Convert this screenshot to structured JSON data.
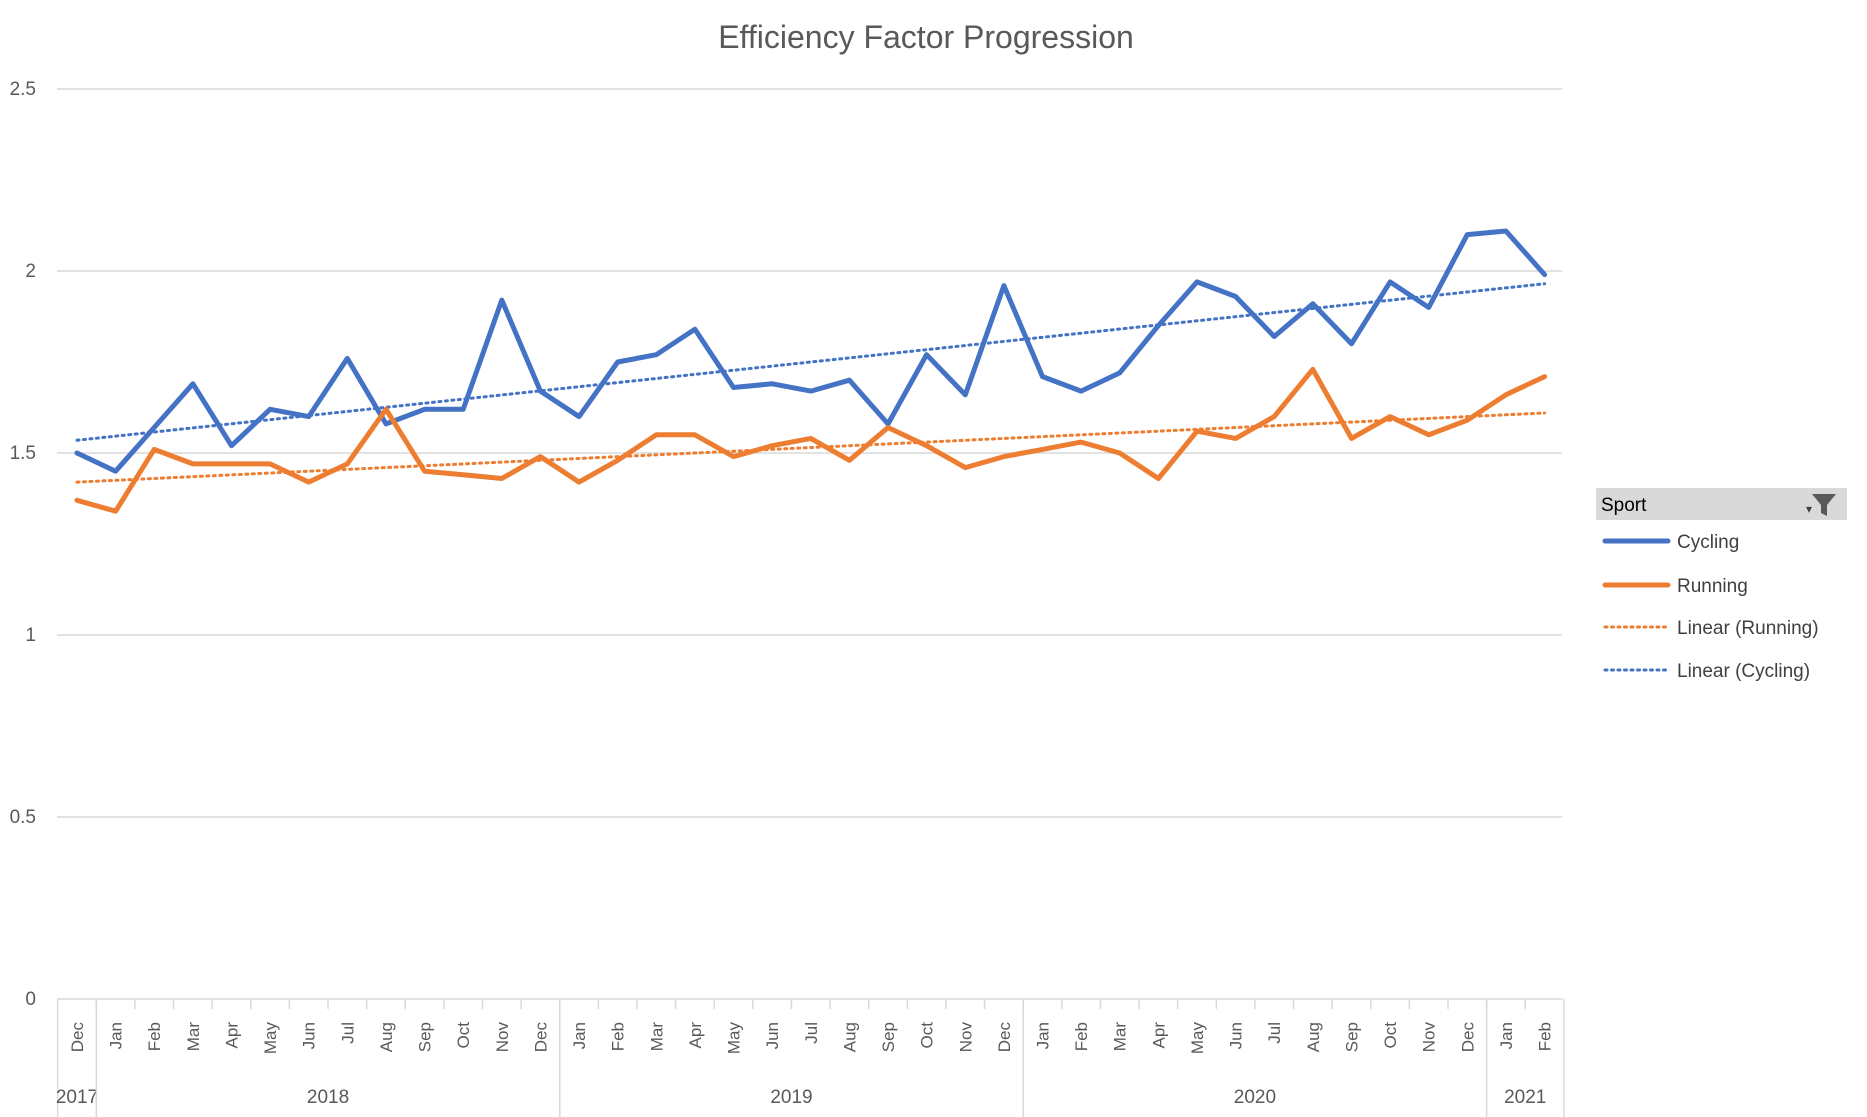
{
  "chart_data": {
    "type": "line",
    "title": "Efficiency Factor Progression",
    "ylim": [
      0,
      2.5
    ],
    "yticks": [
      "0",
      "0.5",
      "1",
      "1.5",
      "2",
      "2.5"
    ],
    "grid": true,
    "legend_position": "right",
    "legend_title": "Sport",
    "categories": [
      "Dec",
      "Jan",
      "Feb",
      "Mar",
      "Apr",
      "May",
      "Jun",
      "Jul",
      "Aug",
      "Sep",
      "Oct",
      "Nov",
      "Dec",
      "Jan",
      "Feb",
      "Mar",
      "Apr",
      "May",
      "Jun",
      "Jul",
      "Aug",
      "Sep",
      "Oct",
      "Nov",
      "Dec",
      "Jan",
      "Feb",
      "Mar",
      "Apr",
      "May",
      "Jun",
      "Jul",
      "Aug",
      "Sep",
      "Oct",
      "Nov",
      "Dec",
      "Jan",
      "Feb"
    ],
    "year_groups": [
      {
        "label": "2017",
        "start": 0,
        "end": 0
      },
      {
        "label": "2018",
        "start": 1,
        "end": 12
      },
      {
        "label": "2019",
        "start": 13,
        "end": 24
      },
      {
        "label": "2020",
        "start": 25,
        "end": 36
      },
      {
        "label": "2021",
        "start": 37,
        "end": 38
      }
    ],
    "series": [
      {
        "name": "Cycling",
        "color": "#4472C4",
        "style": "solid",
        "values": [
          1.5,
          1.45,
          1.57,
          1.69,
          1.52,
          1.62,
          1.6,
          1.76,
          1.58,
          1.62,
          1.62,
          1.92,
          1.67,
          1.6,
          1.75,
          1.77,
          1.84,
          1.68,
          1.69,
          1.67,
          1.7,
          1.58,
          1.77,
          1.66,
          1.96,
          1.71,
          1.67,
          1.72,
          1.85,
          1.97,
          1.93,
          1.82,
          1.91,
          1.8,
          1.97,
          1.9,
          2.1,
          2.11,
          1.99
        ]
      },
      {
        "name": "Running",
        "color": "#ED7D31",
        "style": "solid",
        "values": [
          1.37,
          1.34,
          1.51,
          1.47,
          1.47,
          1.47,
          1.42,
          1.47,
          1.62,
          1.45,
          1.44,
          1.43,
          1.49,
          1.42,
          1.48,
          1.55,
          1.55,
          1.49,
          1.52,
          1.54,
          1.48,
          1.57,
          1.52,
          1.46,
          1.49,
          1.51,
          1.53,
          1.5,
          1.43,
          1.56,
          1.54,
          1.6,
          1.73,
          1.54,
          1.6,
          1.55,
          1.59,
          1.66,
          1.71
        ]
      },
      {
        "name": "Linear (Running)",
        "color": "#ED7D31",
        "style": "dotted",
        "trend": [
          1.42,
          1.61
        ]
      },
      {
        "name": "Linear (Cycling)",
        "color": "#4472C4",
        "style": "dotted",
        "trend": [
          1.535,
          1.965
        ]
      }
    ]
  }
}
